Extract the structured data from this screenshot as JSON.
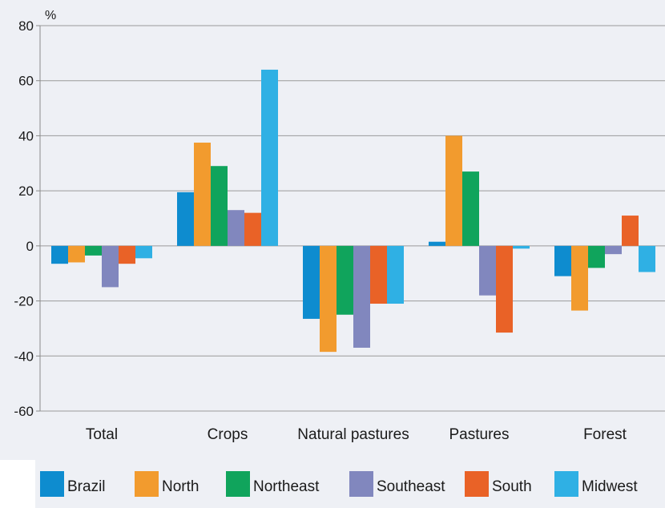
{
  "chart_data": {
    "type": "bar",
    "unit_label": "%",
    "categories": [
      "Total",
      "Crops",
      "Natural pastures",
      "Pastures",
      "Forest"
    ],
    "ylim": [
      -60,
      80
    ],
    "yticks": [
      80,
      60,
      40,
      20,
      0,
      -20,
      -40,
      -60
    ],
    "ytick_labels": [
      "80",
      "60",
      "40",
      "20",
      "0",
      "-20",
      "-40",
      "-60"
    ],
    "grid": true,
    "legend_position": "bottom",
    "series": [
      {
        "name": "Brazil",
        "color": "#0e8ccf",
        "values": [
          -6.5,
          19.5,
          -26.5,
          1.5,
          -11
        ]
      },
      {
        "name": "North",
        "color": "#f29b2e",
        "values": [
          -6,
          37.5,
          -38.5,
          40,
          -23.5
        ]
      },
      {
        "name": "Northeast",
        "color": "#10a45c",
        "values": [
          -3.5,
          29,
          -25,
          27,
          -8
        ]
      },
      {
        "name": "Southeast",
        "color": "#8187be",
        "values": [
          -15,
          13,
          -37,
          -18,
          -3
        ]
      },
      {
        "name": "South",
        "color": "#e96227",
        "values": [
          -6.5,
          12,
          -21,
          -31.5,
          11
        ]
      },
      {
        "name": "Midwest",
        "color": "#2fb0e4",
        "values": [
          -4.5,
          64,
          -21,
          -1,
          -9.5
        ]
      }
    ]
  }
}
